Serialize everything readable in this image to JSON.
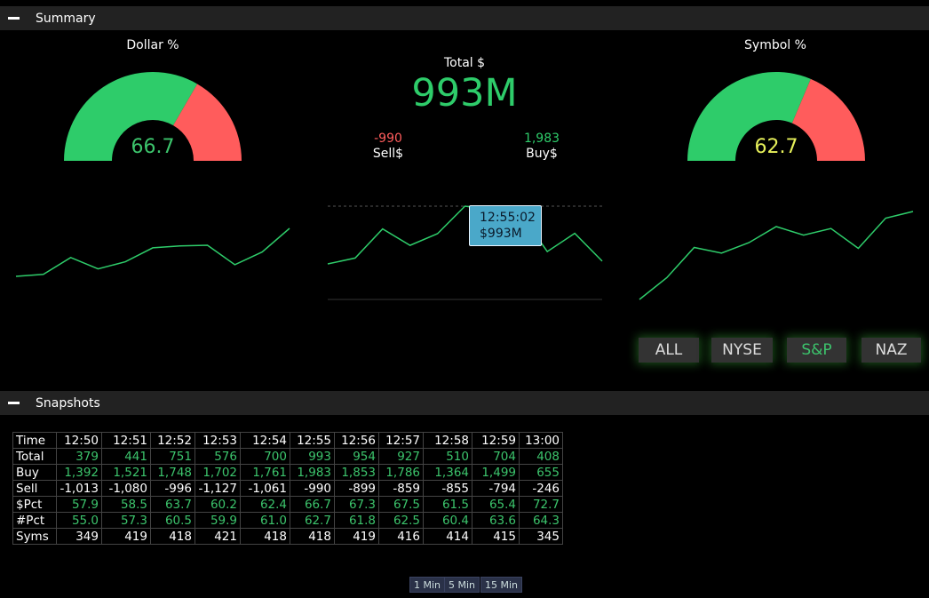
{
  "summary": {
    "title": "Summary"
  },
  "dollar_gauge": {
    "title": "Dollar %",
    "value": "66.7",
    "pct": 66.7,
    "value_color": "#3cc46c"
  },
  "symbol_gauge": {
    "title": "Symbol %",
    "value": "62.7",
    "pct": 62.7,
    "value_color": "#e6f05a"
  },
  "total": {
    "label": "Total $",
    "value": "993M",
    "sell_value": "-990",
    "sell_label": "Sell$",
    "buy_value": "1,983",
    "buy_label": "Buy$"
  },
  "tooltip": {
    "time": "12:55:02",
    "value": "$993M"
  },
  "colors": {
    "green": "#2ecc6a",
    "red": "#ff5c5c",
    "line": "#2ecc6a"
  },
  "sparklines": {
    "dollar": [
      57.9,
      58.5,
      63.7,
      60.2,
      62.4,
      66.7,
      67.3,
      67.5,
      61.5,
      65.4,
      72.7
    ],
    "total": [
      379,
      441,
      751,
      576,
      700,
      993,
      954,
      927,
      510,
      704,
      408
    ],
    "symbol": [
      55.0,
      57.3,
      60.5,
      59.9,
      61.0,
      62.7,
      61.8,
      62.5,
      60.4,
      63.6,
      64.3
    ]
  },
  "markets": {
    "buttons": [
      "ALL",
      "NYSE",
      "S&P",
      "NAZ"
    ],
    "active": "S&P"
  },
  "snapshots": {
    "title": "Snapshots",
    "headers": [
      "Time",
      "12:50",
      "12:51",
      "12:52",
      "12:53",
      "12:54",
      "12:55",
      "12:56",
      "12:57",
      "12:58",
      "12:59",
      "13:00"
    ],
    "rows": [
      {
        "label": "Total",
        "color": "green",
        "values": [
          "379",
          "441",
          "751",
          "576",
          "700",
          "993",
          "954",
          "927",
          "510",
          "704",
          "408"
        ]
      },
      {
        "label": "Buy",
        "color": "green",
        "values": [
          "1,392",
          "1,521",
          "1,748",
          "1,702",
          "1,761",
          "1,983",
          "1,853",
          "1,786",
          "1,364",
          "1,499",
          "655"
        ]
      },
      {
        "label": "Sell",
        "color": "white",
        "values": [
          "-1,013",
          "-1,080",
          "-996",
          "-1,127",
          "-1,061",
          "-990",
          "-899",
          "-859",
          "-855",
          "-794",
          "-246"
        ]
      },
      {
        "label": "$Pct",
        "color": "green",
        "values": [
          "57.9",
          "58.5",
          "63.7",
          "60.2",
          "62.4",
          "66.7",
          "67.3",
          "67.5",
          "61.5",
          "65.4",
          "72.7"
        ]
      },
      {
        "label": "#Pct",
        "color": "green",
        "values": [
          "55.0",
          "57.3",
          "60.5",
          "59.9",
          "61.0",
          "62.7",
          "61.8",
          "62.5",
          "60.4",
          "63.6",
          "64.3"
        ]
      },
      {
        "label": "Syms",
        "color": "white",
        "values": [
          "349",
          "419",
          "418",
          "421",
          "418",
          "418",
          "419",
          "416",
          "414",
          "415",
          "345"
        ]
      }
    ]
  },
  "intervals": [
    "1 Min",
    "5 Min",
    "15 Min"
  ]
}
